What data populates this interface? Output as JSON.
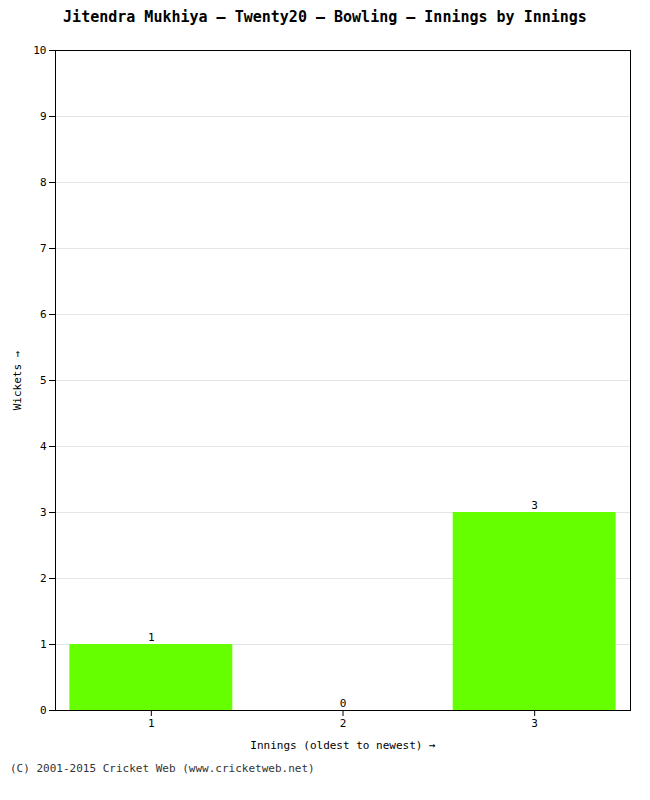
{
  "chart_data": {
    "type": "bar",
    "title": "Jitendra Mukhiya – Twenty20 – Bowling – Innings by Innings",
    "xlabel": "Innings (oldest to newest)",
    "ylabel": "Wickets",
    "footer": "(C) 2001-2015 Cricket Web (www.cricketweb.net)",
    "categories": [
      1,
      2,
      3
    ],
    "values": [
      1,
      0,
      3
    ],
    "color": "#66ff00",
    "xlim": [
      0.5,
      3.5
    ],
    "xticks": [
      1,
      2,
      3
    ],
    "ylim": [
      0,
      10
    ],
    "yticks": [
      0,
      1,
      2,
      3,
      4,
      5,
      6,
      7,
      8,
      9,
      10
    ],
    "grid": true,
    "data_labels": true
  }
}
